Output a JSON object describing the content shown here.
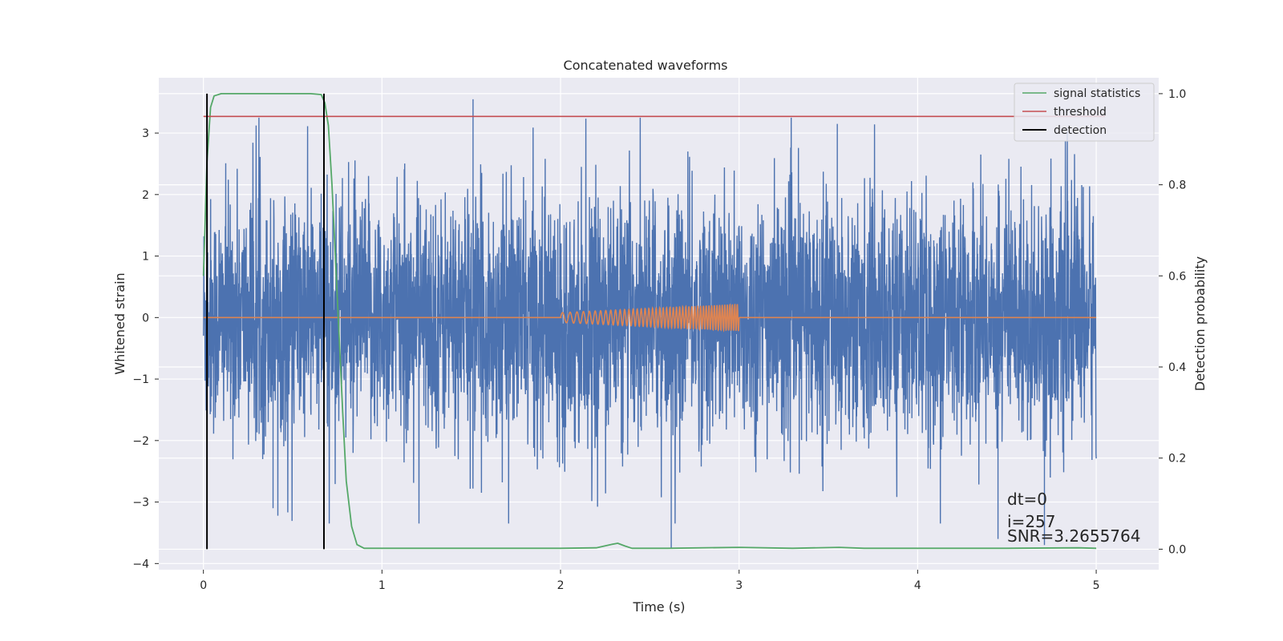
{
  "chart_data": {
    "type": "line",
    "title": "Concatenated waveforms",
    "xlabel": "Time (s)",
    "ylabel": "Whitened strain",
    "ylabel_right": "Detection probability",
    "xlim": [
      -0.25,
      5.35
    ],
    "ylim": [
      -4.1,
      3.9
    ],
    "ylim_right": [
      -0.045,
      1.035
    ],
    "xticks": [
      0,
      1,
      2,
      3,
      4,
      5
    ],
    "yticks": [
      -4,
      -3,
      -2,
      -1,
      0,
      1,
      2,
      3
    ],
    "yticks_right": [
      0.0,
      0.2,
      0.4,
      0.6,
      0.8,
      1.0
    ],
    "grid": true,
    "legend_position": "top-right",
    "colors": {
      "strain": "#4c72b0",
      "template": "#dd8452",
      "signal_statistics": "#55a868",
      "threshold": "#c44e52",
      "detection": "#000000",
      "background": "#eaeaf2",
      "grid": "#ffffff"
    },
    "series": [
      {
        "name": "",
        "role": "whitened-strain",
        "axis": "left",
        "x_range": [
          0,
          5
        ],
        "noise_band": [
          -0.85,
          0.6
        ],
        "peak_max": 3.55,
        "peak_min": -3.75
      },
      {
        "name": "",
        "role": "template-waveform",
        "axis": "left",
        "x_range": [
          0,
          5
        ],
        "chirp_start": 2.0,
        "chirp_end": 3.0,
        "amp_start": 0.08,
        "amp_end": 0.22
      },
      {
        "name": "signal statistics",
        "axis": "right",
        "x": [
          0.0,
          0.02,
          0.04,
          0.06,
          0.1,
          0.3,
          0.6,
          0.66,
          0.68,
          0.7,
          0.72,
          0.75,
          0.78,
          0.8,
          0.83,
          0.86,
          0.9,
          1.0,
          1.5,
          2.0,
          2.2,
          2.28,
          2.32,
          2.36,
          2.4,
          2.6,
          3.0,
          3.3,
          3.56,
          3.7,
          4.0,
          4.5,
          4.9,
          5.0
        ],
        "y": [
          0.6,
          0.85,
          0.97,
          0.995,
          1.0,
          1.0,
          1.0,
          0.998,
          0.98,
          0.93,
          0.8,
          0.55,
          0.3,
          0.15,
          0.05,
          0.01,
          0.002,
          0.002,
          0.002,
          0.002,
          0.003,
          0.01,
          0.013,
          0.007,
          0.002,
          0.002,
          0.004,
          0.002,
          0.004,
          0.002,
          0.002,
          0.002,
          0.003,
          0.002
        ]
      },
      {
        "name": "threshold",
        "axis": "right",
        "x": [
          0,
          5.05
        ],
        "y": [
          0.95,
          0.95
        ]
      },
      {
        "name": "detection",
        "axis": "right",
        "x_positions": [
          0.02,
          0.675
        ],
        "y_range": [
          0.0,
          1.0
        ]
      }
    ],
    "annotations": [
      "dt=0",
      "i=257",
      "SNR=3.2655764"
    ]
  }
}
